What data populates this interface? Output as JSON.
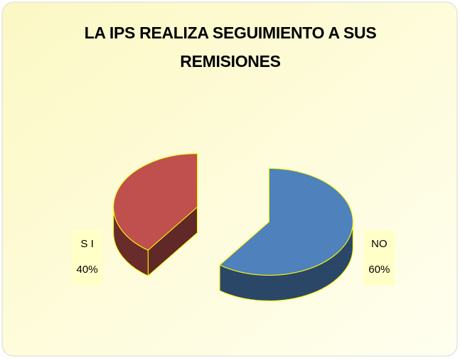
{
  "chart_data": {
    "type": "pie",
    "title": "LA IPS REALIZA SEGUIMIENTO A SUS REMISIONES",
    "categories": [
      "S I",
      "NO"
    ],
    "values": [
      40,
      60
    ],
    "value_labels": [
      "40%",
      "60%"
    ],
    "colors": [
      "#c0504d",
      "#4f81bd"
    ]
  }
}
